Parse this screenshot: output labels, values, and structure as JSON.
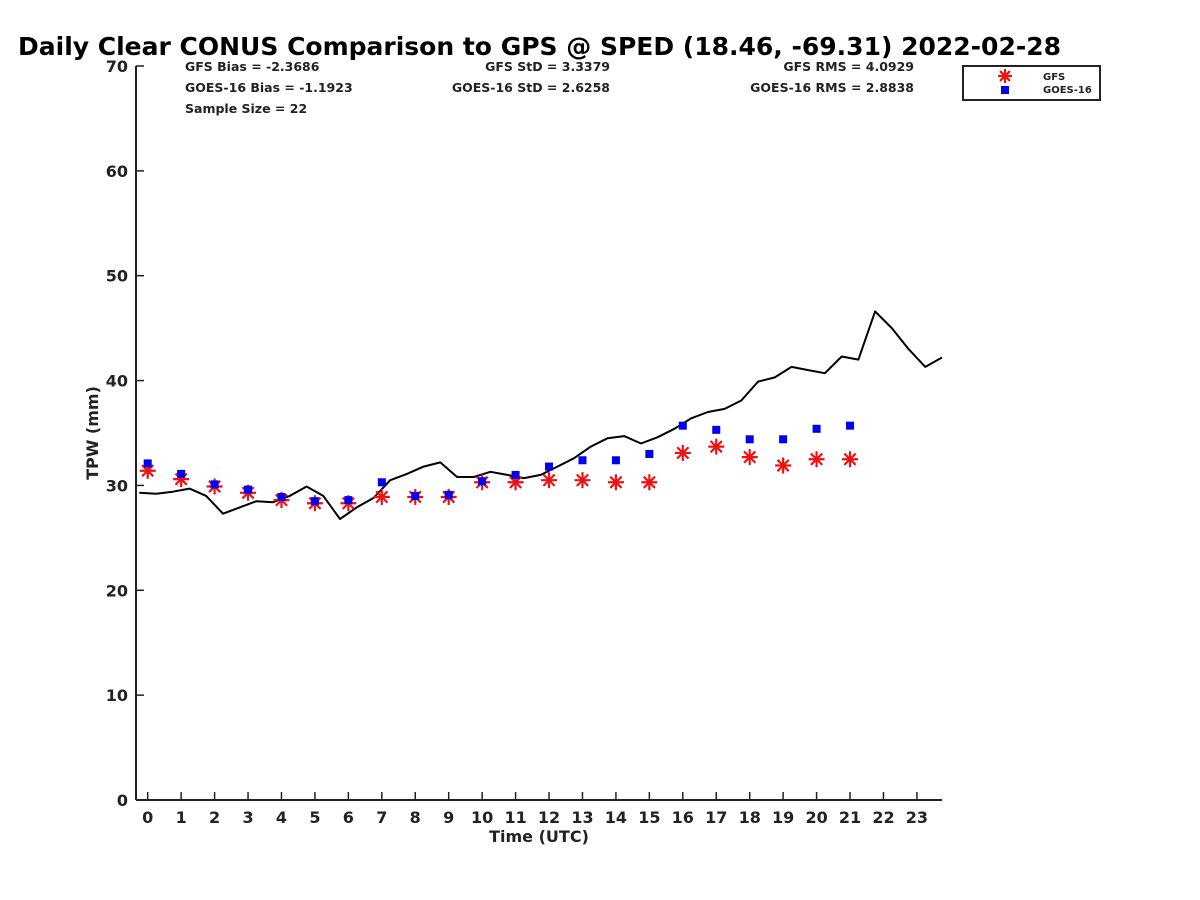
{
  "chart_data": {
    "type": "line",
    "title": "Daily Clear CONUS Comparison to GPS @ SPED (18.46, -69.31) 2022-02-28",
    "xlabel": "Time (UTC)",
    "ylabel": "TPW (mm)",
    "xlim": [
      -0.35,
      23.75
    ],
    "ylim": [
      0,
      70
    ],
    "x_ticks": [
      0,
      1,
      2,
      3,
      4,
      5,
      6,
      7,
      8,
      9,
      10,
      11,
      12,
      13,
      14,
      15,
      16,
      17,
      18,
      19,
      20,
      21,
      22,
      23
    ],
    "y_ticks": [
      0,
      10,
      20,
      30,
      40,
      50,
      60,
      70
    ],
    "stats": {
      "gfs_bias": "GFS Bias = -2.3686",
      "gfs_std": "GFS StD = 3.3379",
      "gfs_rms": "GFS RMS = 4.0929",
      "goes_bias": "GOES-16 Bias = -1.1923",
      "goes_std": "GOES-16 StD = 2.6258",
      "goes_rms": "GOES-16 RMS = 2.8838",
      "sample_size": "Sample Size = 22"
    },
    "legend": {
      "position": "top-right",
      "entries": [
        "GFS",
        "GOES-16"
      ]
    },
    "gps_line": {
      "color": "#000000",
      "x": [
        -0.25,
        0.25,
        0.75,
        1.25,
        1.75,
        2.25,
        2.75,
        3.25,
        3.75,
        4.25,
        4.75,
        5.25,
        5.75,
        6.25,
        6.75,
        7.25,
        7.75,
        8.25,
        8.75,
        9.25,
        9.75,
        10.25,
        10.75,
        11.25,
        11.75,
        12.25,
        12.75,
        13.25,
        13.75,
        14.25,
        14.75,
        15.25,
        15.75,
        16.25,
        16.75,
        17.25,
        17.75,
        18.25,
        18.75,
        19.25,
        19.75,
        20.25,
        20.75,
        21.25,
        21.75,
        22.25,
        22.75,
        23.25,
        23.75
      ],
      "y": [
        29.3,
        29.2,
        29.4,
        29.7,
        29.0,
        27.3,
        27.9,
        28.5,
        28.4,
        29.0,
        29.9,
        29.0,
        26.8,
        27.9,
        28.8,
        30.5,
        31.1,
        31.8,
        32.2,
        30.8,
        30.8,
        31.3,
        31.0,
        30.7,
        31.0,
        31.8,
        32.6,
        33.7,
        34.5,
        34.7,
        34.0,
        34.6,
        35.4,
        36.4,
        37.0,
        37.3,
        38.1,
        39.9,
        40.3,
        41.3,
        41.0,
        40.7,
        42.3,
        42.0,
        46.6,
        45.0,
        43.0,
        41.3,
        42.2
      ]
    },
    "series": [
      {
        "name": "GFS",
        "color": "#ee1111",
        "marker": "asterisk",
        "x": [
          0,
          1,
          2,
          3,
          4,
          5,
          6,
          7,
          8,
          9,
          10,
          11,
          12,
          13,
          14,
          15,
          16,
          17,
          18,
          19,
          20,
          21
        ],
        "y": [
          31.4,
          30.6,
          29.9,
          29.3,
          28.6,
          28.3,
          28.3,
          28.9,
          28.9,
          28.9,
          30.3,
          30.3,
          30.5,
          30.5,
          30.3,
          30.3,
          33.1,
          33.7,
          32.7,
          31.9,
          32.5,
          32.5
        ]
      },
      {
        "name": "GOES-16",
        "color": "#0000ee",
        "marker": "square",
        "x": [
          0,
          1,
          2,
          3,
          4,
          5,
          6,
          7,
          8,
          9,
          10,
          11,
          12,
          13,
          14,
          15,
          16,
          17,
          18,
          19,
          20,
          21
        ],
        "y": [
          32.1,
          31.1,
          30.1,
          29.6,
          28.9,
          28.5,
          28.6,
          30.3,
          29.0,
          29.1,
          30.4,
          31.0,
          31.8,
          32.4,
          32.4,
          33.0,
          35.7,
          35.3,
          34.4,
          34.4,
          35.4,
          35.7
        ]
      }
    ]
  }
}
